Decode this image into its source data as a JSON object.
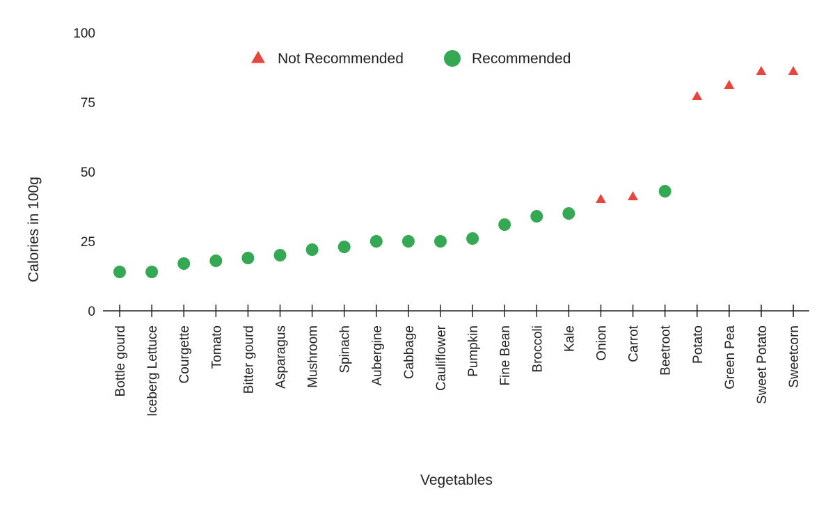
{
  "chart_data": {
    "type": "scatter",
    "title": "",
    "xlabel": "Vegetables",
    "ylabel": "Calories in 100g",
    "ylim": [
      0,
      100
    ],
    "yticks": [
      0,
      25,
      50,
      75,
      100
    ],
    "grid": false,
    "legend_position": "top-center",
    "categories": [
      "Bottle gourd",
      "Iceberg Lettuce",
      "Courgette",
      "Tomato",
      "Bitter gourd",
      "Asparagus",
      "Mushroom",
      "Spinach",
      "Aubergine",
      "Cabbage",
      "Cauliflower",
      "Pumpkin",
      "Fine Bean",
      "Broccoli",
      "Kale",
      "Onion",
      "Carrot",
      "Beetroot",
      "Potato",
      "Green Pea",
      "Sweet Potato",
      "Sweetcorn"
    ],
    "series": [
      {
        "name": "Not Recommended",
        "marker": "triangle",
        "color": "#e8453c",
        "points": [
          {
            "x": "Onion",
            "y": 40
          },
          {
            "x": "Carrot",
            "y": 41
          },
          {
            "x": "Potato",
            "y": 77
          },
          {
            "x": "Green Pea",
            "y": 81
          },
          {
            "x": "Sweet Potato",
            "y": 86
          },
          {
            "x": "Sweetcorn",
            "y": 86
          }
        ]
      },
      {
        "name": "Recommended",
        "marker": "circle",
        "color": "#34a853",
        "points": [
          {
            "x": "Bottle gourd",
            "y": 14
          },
          {
            "x": "Iceberg Lettuce",
            "y": 14
          },
          {
            "x": "Courgette",
            "y": 17
          },
          {
            "x": "Tomato",
            "y": 18
          },
          {
            "x": "Bitter gourd",
            "y": 19
          },
          {
            "x": "Asparagus",
            "y": 20
          },
          {
            "x": "Mushroom",
            "y": 22
          },
          {
            "x": "Spinach",
            "y": 23
          },
          {
            "x": "Aubergine",
            "y": 25
          },
          {
            "x": "Cabbage",
            "y": 25
          },
          {
            "x": "Cauliflower",
            "y": 25
          },
          {
            "x": "Pumpkin",
            "y": 26
          },
          {
            "x": "Fine Bean",
            "y": 31
          },
          {
            "x": "Broccoli",
            "y": 34
          },
          {
            "x": "Kale",
            "y": 35
          },
          {
            "x": "Beetroot",
            "y": 43
          }
        ]
      }
    ]
  }
}
